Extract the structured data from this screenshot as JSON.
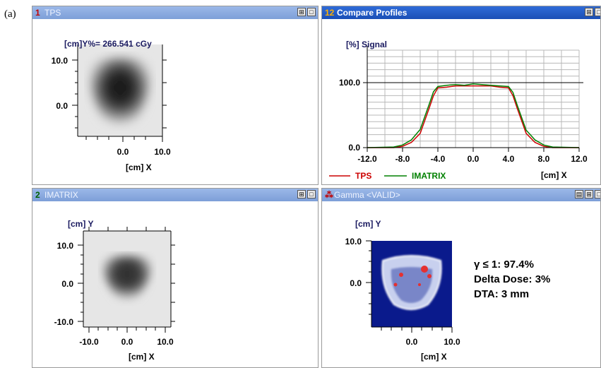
{
  "figure_label": "(a)",
  "panels": {
    "tps": {
      "number": "1",
      "title": "TPS",
      "dose_readout": "[cm]Y%= 266.541 cGy",
      "y_ticks": [
        "10.0",
        "0.0"
      ],
      "x_ticks": [
        "0.0",
        "10.0"
      ],
      "x_axis_label": "[cm] X"
    },
    "compare": {
      "number": "12",
      "title": "Compare Profiles",
      "y_axis_label": "[%] Signal",
      "x_axis_label": "[cm] X",
      "y_ticks": [
        "100.0",
        "0.0"
      ],
      "x_ticks": [
        "-12.0",
        "-8.0",
        "-4.0",
        "0.0",
        "4.0",
        "8.0",
        "12.0"
      ],
      "legend": [
        {
          "name": "TPS",
          "color": "#cc0000"
        },
        {
          "name": "IMATRIX",
          "color": "#008000"
        }
      ]
    },
    "imatrix": {
      "number": "2",
      "title": "IMATRIX",
      "y_axis_label": "[cm] Y",
      "y_ticks": [
        "10.0",
        "0.0",
        "-10.0"
      ],
      "x_ticks": [
        "-10.0",
        "0.0",
        "10.0"
      ],
      "x_axis_label": "[cm] X"
    },
    "gamma": {
      "number": "",
      "title": "Gamma <VALID>",
      "y_axis_label": "[cm] Y",
      "y_ticks": [
        "10.0",
        "0.0"
      ],
      "x_ticks": [
        "0.0",
        "10.0"
      ],
      "x_axis_label": "[cm] X",
      "stats": [
        "γ ≤ 1: 97.4%",
        "Delta Dose: 3%",
        "DTA: 3 mm"
      ]
    }
  },
  "chart_data": {
    "type": "line",
    "title": "",
    "xlabel": "[cm] X",
    "ylabel": "[%] Signal",
    "xlim": [
      -12,
      12
    ],
    "ylim": [
      0,
      150
    ],
    "grid": true,
    "legend_placement": "bottom",
    "x": [
      -12,
      -9,
      -8,
      -7,
      -6,
      -5,
      -4.5,
      -4,
      -3,
      -2,
      -1,
      0,
      1,
      2,
      3,
      4,
      4.5,
      5,
      6,
      7,
      8,
      9,
      12
    ],
    "series": [
      {
        "name": "TPS",
        "values": [
          0,
          0,
          2,
          8,
          22,
          60,
          80,
          92,
          93,
          95,
          95,
          95,
          95,
          95,
          93,
          92,
          80,
          60,
          22,
          8,
          2,
          0,
          0
        ]
      },
      {
        "name": "IMATRIX",
        "values": [
          0,
          1,
          4,
          12,
          28,
          66,
          86,
          94,
          96,
          97,
          96,
          98,
          97,
          96,
          95,
          94,
          85,
          65,
          27,
          12,
          4,
          1,
          0
        ]
      }
    ]
  }
}
